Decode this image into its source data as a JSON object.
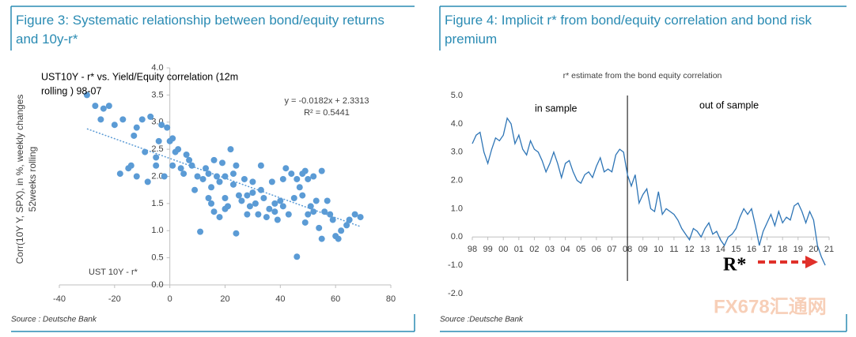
{
  "chart_data": [
    {
      "type": "scatter",
      "title": "Figure 3: Systematic relationship between bond/equity returns and 10y-r*",
      "annotation_lines": [
        "UST10Y - r* vs. Yield/Equity correlation (12m",
        "rolling ) 98-07"
      ],
      "equation": "y = -0.0182x + 2.3313",
      "r_squared": "R² = 0.5441",
      "trendline": {
        "slope": -0.0182,
        "intercept": 2.3313
      },
      "x_label": "UST 10Y - r*",
      "y_label_lines": [
        "Corr(10Y Y, SPX), in %, weekly changes",
        "52weeks rolling"
      ],
      "source": "Source : Deutsche Bank",
      "color": "#5b9bd5",
      "xlim": [
        -40,
        80
      ],
      "xticks": [
        -40,
        -20,
        0,
        20,
        40,
        60,
        80
      ],
      "ylim": [
        0,
        4
      ],
      "yticks": [
        {
          "value": 0,
          "label": "0.0"
        },
        {
          "value": 0.5,
          "label": "0.5"
        },
        {
          "value": 1,
          "label": "1.0"
        },
        {
          "value": 1.5,
          "label": "1.5"
        },
        {
          "value": 2,
          "label": "2.0"
        },
        {
          "value": 2.5,
          "label": "2.5"
        },
        {
          "value": 3,
          "label": "3.0"
        },
        {
          "value": 3.5,
          "label": "3.5"
        },
        {
          "value": 4,
          "label": "4.0"
        }
      ],
      "x": [
        -30,
        -27,
        -25,
        -24,
        -22,
        -20,
        -18,
        -17,
        -15,
        -14,
        -13,
        -12,
        -12,
        -10,
        -9,
        -8,
        -7,
        -5,
        -5,
        -4,
        -3,
        -2,
        -1,
        0,
        1,
        1,
        2,
        3,
        4,
        5,
        6,
        7,
        8,
        9,
        10,
        11,
        12,
        13,
        14,
        14,
        15,
        15,
        16,
        17,
        18,
        19,
        20,
        20,
        21,
        22,
        23,
        23,
        24,
        24,
        25,
        26,
        27,
        28,
        28,
        29,
        30,
        30,
        31,
        32,
        33,
        33,
        34,
        35,
        36,
        37,
        38,
        38,
        39,
        40,
        41,
        41,
        42,
        43,
        44,
        45,
        46,
        46,
        47,
        48,
        48,
        49,
        49,
        50,
        50,
        51,
        52,
        52,
        53,
        54,
        55,
        55,
        56,
        57,
        58,
        59,
        60,
        61,
        62,
        64,
        65,
        67,
        69,
        18,
        16,
        20
      ],
      "values": [
        3.5,
        3.3,
        3.05,
        3.25,
        3.3,
        2.95,
        2.05,
        3.05,
        2.15,
        2.2,
        2.75,
        2.9,
        2.0,
        3.05,
        2.45,
        1.9,
        3.1,
        2.2,
        2.35,
        2.65,
        2.95,
        2.0,
        2.9,
        2.65,
        2.2,
        2.7,
        2.45,
        2.5,
        2.15,
        2.05,
        2.4,
        2.3,
        2.2,
        1.75,
        2.0,
        0.98,
        1.95,
        2.15,
        2.05,
        1.6,
        1.5,
        1.8,
        2.3,
        2.0,
        1.9,
        2.25,
        2.0,
        1.6,
        1.45,
        2.5,
        1.85,
        2.05,
        2.2,
        0.95,
        1.65,
        1.55,
        1.95,
        1.3,
        1.65,
        1.45,
        1.7,
        1.9,
        1.5,
        1.3,
        1.75,
        2.2,
        1.6,
        1.25,
        1.4,
        1.9,
        1.35,
        1.5,
        1.2,
        1.55,
        1.45,
        1.95,
        2.15,
        1.3,
        2.05,
        1.6,
        1.95,
        0.52,
        1.8,
        2.05,
        1.65,
        1.15,
        2.1,
        1.3,
        1.95,
        1.45,
        2.0,
        1.35,
        1.55,
        1.05,
        0.85,
        2.1,
        1.35,
        1.55,
        1.3,
        1.2,
        0.9,
        0.85,
        1.0,
        1.1,
        1.2,
        1.3,
        1.25,
        1.25,
        1.35,
        1.4
      ]
    },
    {
      "type": "line",
      "title": "Figure 4: Implicit r* from bond/equity correlation and bond risk premium",
      "subtitle": "r* estimate from the bond equity correlation",
      "annotations": [
        "in sample",
        "out of sample"
      ],
      "marker_text": "R*",
      "split_x": 2008,
      "source": "Source :Deutsche Bank",
      "watermark": "FX678汇通网",
      "color": "#2e75b6",
      "xlim": [
        1998,
        2021
      ],
      "xticks": [
        {
          "value": 1998,
          "label": "98"
        },
        {
          "value": 1999,
          "label": "99"
        },
        {
          "value": 2000,
          "label": "00"
        },
        {
          "value": 2001,
          "label": "01"
        },
        {
          "value": 2002,
          "label": "02"
        },
        {
          "value": 2003,
          "label": "03"
        },
        {
          "value": 2004,
          "label": "04"
        },
        {
          "value": 2005,
          "label": "05"
        },
        {
          "value": 2006,
          "label": "06"
        },
        {
          "value": 2007,
          "label": "07"
        },
        {
          "value": 2008,
          "label": "08"
        },
        {
          "value": 2009,
          "label": "09"
        },
        {
          "value": 2010,
          "label": "10"
        },
        {
          "value": 2011,
          "label": "11"
        },
        {
          "value": 2012,
          "label": "12"
        },
        {
          "value": 2013,
          "label": "13"
        },
        {
          "value": 2014,
          "label": "14"
        },
        {
          "value": 2015,
          "label": "15"
        },
        {
          "value": 2016,
          "label": "16"
        },
        {
          "value": 2017,
          "label": "17"
        },
        {
          "value": 2018,
          "label": "18"
        },
        {
          "value": 2019,
          "label": "19"
        },
        {
          "value": 2020,
          "label": "20"
        },
        {
          "value": 2021,
          "label": "21"
        }
      ],
      "ylim": [
        -2,
        5
      ],
      "yticks": [
        {
          "value": 5,
          "label": "5.0"
        },
        {
          "value": 4,
          "label": "4.0"
        },
        {
          "value": 3,
          "label": "3.0"
        },
        {
          "value": 2,
          "label": "2.0"
        },
        {
          "value": 1,
          "label": "1.0"
        },
        {
          "value": 0,
          "label": "0.0"
        },
        {
          "value": -1,
          "label": "-1.0"
        },
        {
          "value": -2,
          "label": "-2.0"
        }
      ],
      "x": [
        1998,
        1998.25,
        1998.5,
        1998.75,
        1999,
        1999.25,
        1999.5,
        1999.75,
        2000,
        2000.25,
        2000.5,
        2000.75,
        2001,
        2001.25,
        2001.5,
        2001.75,
        2002,
        2002.25,
        2002.5,
        2002.75,
        2003,
        2003.25,
        2003.5,
        2003.75,
        2004,
        2004.25,
        2004.5,
        2004.75,
        2005,
        2005.25,
        2005.5,
        2005.75,
        2006,
        2006.25,
        2006.5,
        2006.75,
        2007,
        2007.25,
        2007.5,
        2007.75,
        2008,
        2008.25,
        2008.5,
        2008.75,
        2009,
        2009.25,
        2009.5,
        2009.75,
        2010,
        2010.25,
        2010.5,
        2010.75,
        2011,
        2011.25,
        2011.5,
        2011.75,
        2012,
        2012.25,
        2012.5,
        2012.75,
        2013,
        2013.25,
        2013.5,
        2013.75,
        2014,
        2014.25,
        2014.5,
        2014.75,
        2015,
        2015.25,
        2015.5,
        2015.75,
        2016,
        2016.25,
        2016.5,
        2016.75,
        2017,
        2017.25,
        2017.5,
        2017.75,
        2018,
        2018.25,
        2018.5,
        2018.75,
        2019,
        2019.25,
        2019.5,
        2019.75,
        2020,
        2020.25,
        2020.5,
        2020.75
      ],
      "values": [
        3.3,
        3.6,
        3.7,
        3.0,
        2.6,
        3.1,
        3.5,
        3.4,
        3.6,
        4.2,
        4.0,
        3.3,
        3.6,
        3.1,
        2.9,
        3.4,
        3.1,
        3.0,
        2.7,
        2.3,
        2.6,
        3.0,
        2.6,
        2.1,
        2.6,
        2.7,
        2.3,
        2.0,
        1.9,
        2.2,
        2.3,
        2.1,
        2.5,
        2.8,
        2.3,
        2.4,
        2.3,
        2.9,
        3.1,
        3.0,
        2.2,
        1.8,
        2.2,
        1.2,
        1.5,
        1.7,
        1.0,
        0.9,
        1.6,
        0.8,
        1.0,
        0.9,
        0.8,
        0.6,
        0.3,
        0.1,
        -0.1,
        0.3,
        0.2,
        0.0,
        0.3,
        0.5,
        0.1,
        0.2,
        -0.1,
        -0.3,
        0.0,
        0.1,
        0.3,
        0.7,
        1.0,
        0.8,
        1.0,
        0.4,
        -0.3,
        0.2,
        0.5,
        0.8,
        0.4,
        0.9,
        0.5,
        0.7,
        0.6,
        1.1,
        1.2,
        0.9,
        0.5,
        0.9,
        0.6,
        -0.3,
        -0.7,
        -1.0
      ]
    }
  ]
}
